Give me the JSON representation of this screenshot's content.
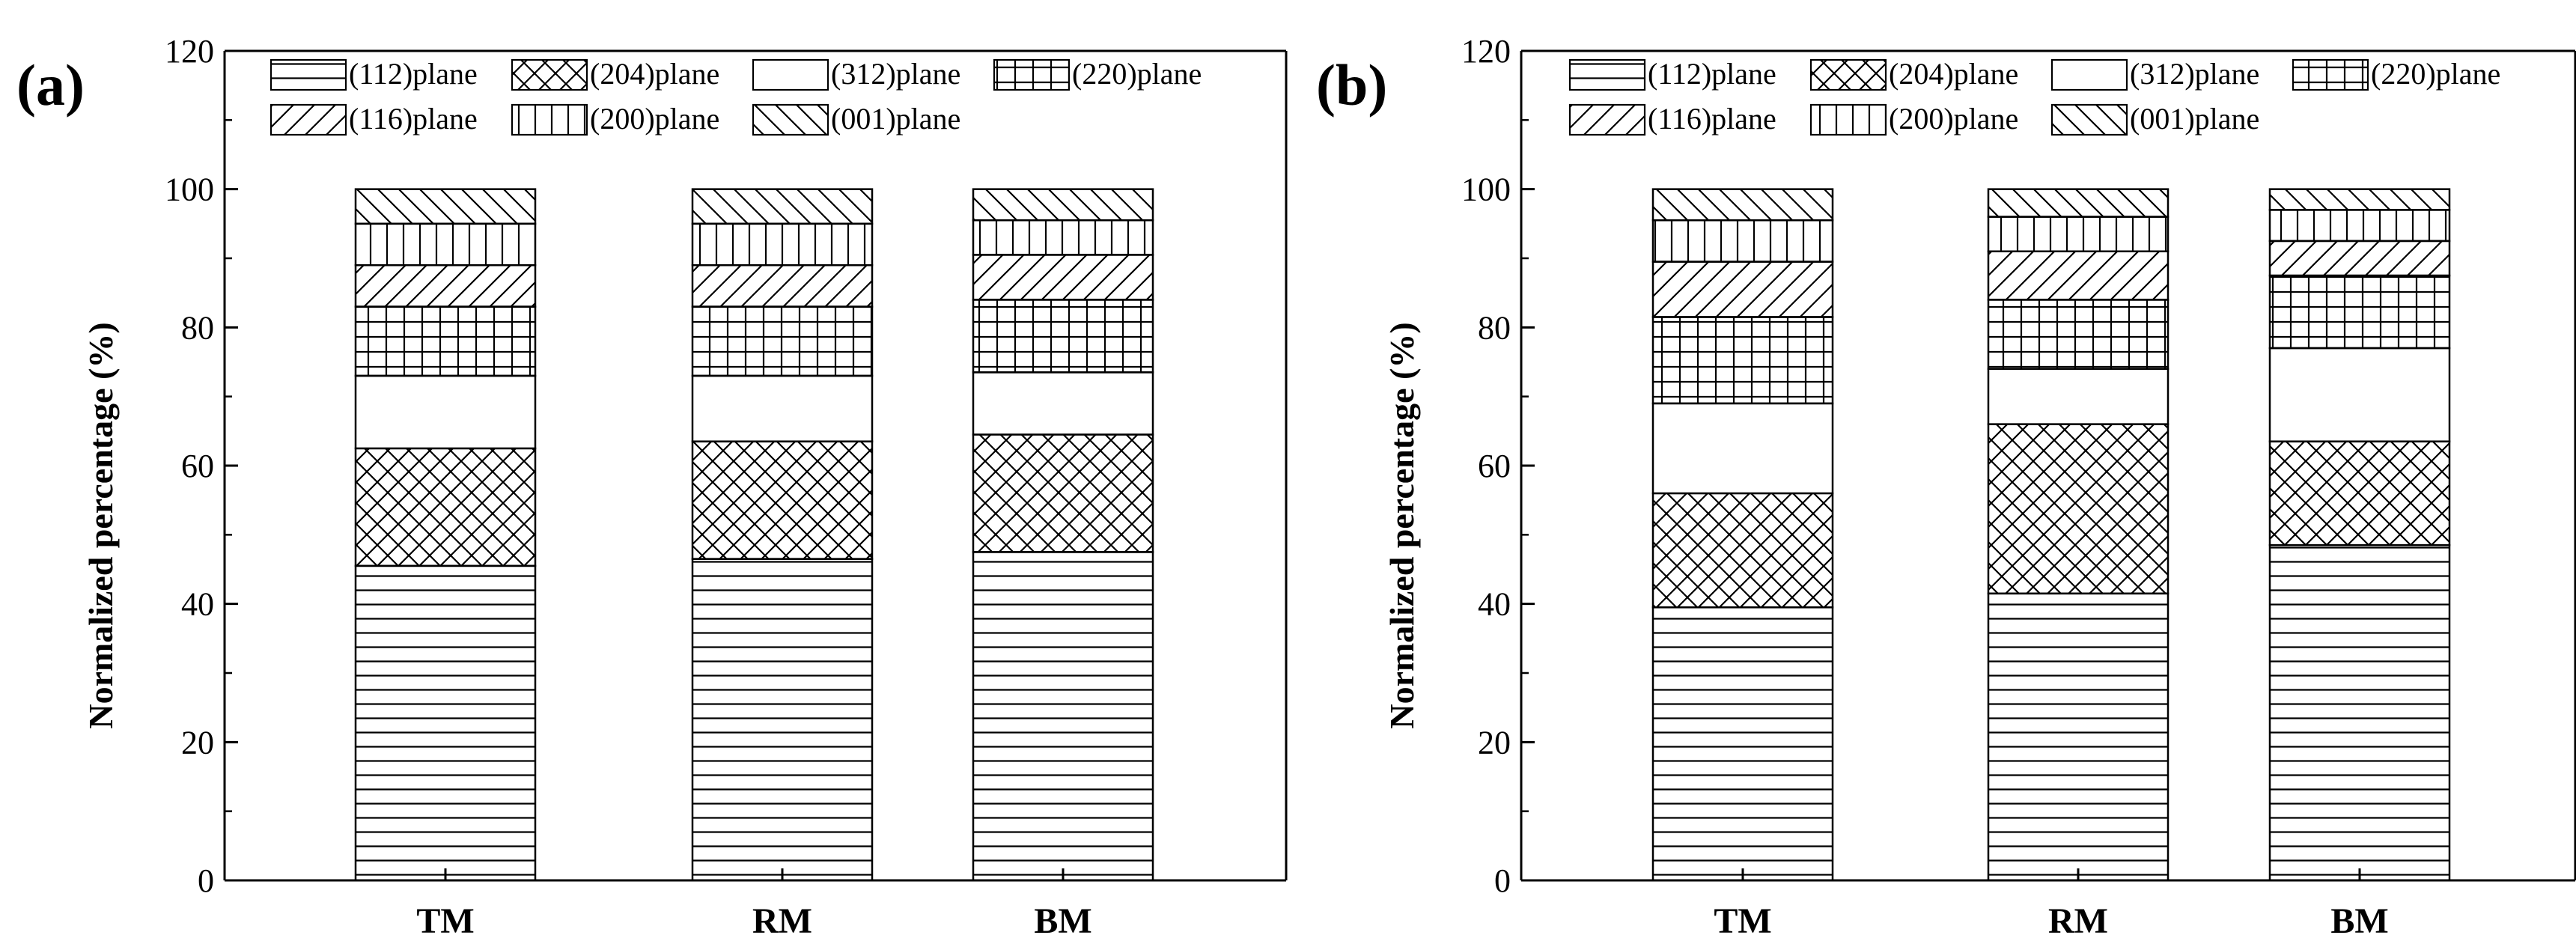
{
  "chart_data": [
    {
      "panel_label": "(a)",
      "type": "bar",
      "stacked": true,
      "normalized": true,
      "categories": [
        "TM",
        "RM",
        "BM"
      ],
      "ylabel": "Normalized percentage (%)",
      "xlabel": "",
      "ylim": [
        0,
        120
      ],
      "yticks": [
        "0",
        "20",
        "40",
        "60",
        "80",
        "100",
        "120"
      ],
      "legend_position": "top",
      "grid": false,
      "series": [
        {
          "name": "(112)plane",
          "pattern": "horizontal",
          "values": [
            45.5,
            46.5,
            47.5
          ]
        },
        {
          "name": "(204)plane",
          "pattern": "crosshatch-diagonal",
          "values": [
            17.0,
            17.0,
            17.0
          ]
        },
        {
          "name": "(312)plane",
          "pattern": "blank",
          "values": [
            10.5,
            9.5,
            9.0
          ]
        },
        {
          "name": "(220)plane",
          "pattern": "grid",
          "values": [
            10.0,
            10.0,
            10.5
          ]
        },
        {
          "name": "(116)plane",
          "pattern": "forward-diagonal",
          "values": [
            6.0,
            6.0,
            6.5
          ]
        },
        {
          "name": "(200)plane",
          "pattern": "vertical",
          "values": [
            6.0,
            6.0,
            5.0
          ]
        },
        {
          "name": "(001)plane",
          "pattern": "backward-diagonal",
          "values": [
            5.0,
            5.0,
            4.5
          ]
        }
      ]
    },
    {
      "panel_label": "(b)",
      "type": "bar",
      "stacked": true,
      "normalized": true,
      "categories": [
        "TM",
        "RM",
        "BM"
      ],
      "ylabel": "Normalized percentage (%)",
      "xlabel": "",
      "ylim": [
        0,
        120
      ],
      "yticks": [
        "0",
        "20",
        "40",
        "60",
        "80",
        "100",
        "120"
      ],
      "legend_position": "top",
      "grid": false,
      "series": [
        {
          "name": "(112)plane",
          "pattern": "horizontal",
          "values": [
            39.5,
            41.5,
            48.5
          ]
        },
        {
          "name": "(204)plane",
          "pattern": "crosshatch-diagonal",
          "values": [
            16.5,
            24.5,
            15.0
          ]
        },
        {
          "name": "(312)plane",
          "pattern": "blank",
          "values": [
            13.0,
            8.0,
            13.5
          ]
        },
        {
          "name": "(220)plane",
          "pattern": "grid",
          "values": [
            12.5,
            10.0,
            10.5
          ]
        },
        {
          "name": "(116)plane",
          "pattern": "forward-diagonal",
          "values": [
            8.0,
            7.0,
            5.0
          ]
        },
        {
          "name": "(200)plane",
          "pattern": "vertical",
          "values": [
            6.0,
            5.0,
            4.5
          ]
        },
        {
          "name": "(001)plane",
          "pattern": "backward-diagonal",
          "values": [
            4.5,
            4.0,
            3.0
          ]
        }
      ]
    }
  ]
}
